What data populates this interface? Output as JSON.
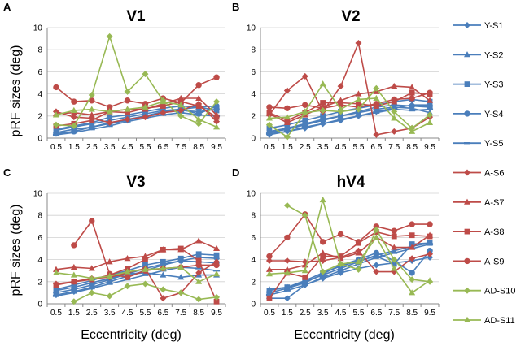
{
  "figure": {
    "ylabel": "pRF sizes (deg)",
    "xlabel": "Eccentricity (deg)"
  },
  "colors": {
    "Y": "#4A7EBB",
    "A": "#BE4B48",
    "AD": "#98B954"
  },
  "chart_data": [
    {
      "type": "line",
      "panel": "A",
      "title": "V1",
      "xlabel": "Eccentricity (deg)",
      "ylabel": "pRF sizes (deg)",
      "categories": [
        "0.5",
        "1.5",
        "2.5",
        "3.5",
        "4.5",
        "5.5",
        "6.5",
        "7.5",
        "8.5",
        "9.5"
      ],
      "ylim": [
        0,
        10
      ],
      "yticks": [
        0,
        2,
        4,
        6,
        8,
        10
      ],
      "series": [
        {
          "name": "Y-S1",
          "group": "Y",
          "marker": "diamond",
          "values": [
            0.5,
            0.8,
            1.0,
            1.3,
            1.6,
            2.0,
            2.3,
            2.5,
            2.4,
            2.6
          ]
        },
        {
          "name": "Y-S2",
          "group": "Y",
          "marker": "triangle",
          "values": [
            0.7,
            1.0,
            1.3,
            1.6,
            1.9,
            2.2,
            2.5,
            2.6,
            2.8,
            2.9
          ]
        },
        {
          "name": "Y-S3",
          "group": "Y",
          "marker": "square",
          "values": [
            0.8,
            1.1,
            1.4,
            1.9,
            2.1,
            2.4,
            2.7,
            2.9,
            2.8,
            2.5
          ]
        },
        {
          "name": "Y-S4",
          "group": "Y",
          "marker": "circle",
          "values": [
            0.4,
            0.6,
            1.0,
            1.4,
            1.7,
            2.0,
            2.4,
            2.6,
            2.2,
            2.9
          ]
        },
        {
          "name": "Y-S5",
          "group": "Y",
          "marker": "dash",
          "values": [
            0.3,
            0.5,
            0.8,
            1.1,
            1.5,
            1.8,
            2.1,
            2.3,
            2.1,
            2.0
          ]
        },
        {
          "name": "A-S6",
          "group": "A",
          "marker": "diamond",
          "values": [
            2.4,
            1.9,
            1.8,
            1.4,
            1.7,
            1.9,
            2.3,
            2.5,
            3.1,
            1.5
          ]
        },
        {
          "name": "A-S7",
          "group": "A",
          "marker": "triangle",
          "values": [
            2.2,
            2.3,
            2.1,
            2.4,
            2.6,
            2.6,
            3.1,
            3.6,
            3.6,
            2.1
          ]
        },
        {
          "name": "A-S8",
          "group": "A",
          "marker": "square",
          "values": [
            1.1,
            1.3,
            1.6,
            2.4,
            2.3,
            2.7,
            2.9,
            3.3,
            2.9,
            1.9
          ]
        },
        {
          "name": "A-S9",
          "group": "A",
          "marker": "circle",
          "values": [
            4.6,
            3.3,
            3.4,
            2.8,
            3.4,
            3.1,
            3.6,
            3.2,
            4.8,
            5.5
          ]
        },
        {
          "name": "AD-S10",
          "group": "AD",
          "marker": "diamond",
          "values": [
            1.2,
            1.1,
            3.9,
            9.2,
            4.2,
            5.8,
            3.4,
            2.0,
            1.3,
            3.3
          ]
        },
        {
          "name": "AD-S11",
          "group": "AD",
          "marker": "triangle",
          "values": [
            2.1,
            2.5,
            2.6,
            2.4,
            2.6,
            2.8,
            3.3,
            3.0,
            1.7,
            1.0
          ]
        }
      ]
    },
    {
      "type": "line",
      "panel": "B",
      "title": "V2",
      "xlabel": "Eccentricity (deg)",
      "ylabel": "pRF sizes (deg)",
      "categories": [
        "0.5",
        "1.5",
        "2.5",
        "3.5",
        "4.5",
        "5.5",
        "6.5",
        "7.5",
        "8.5",
        "9.5"
      ],
      "ylim": [
        0,
        10
      ],
      "yticks": [
        0,
        2,
        4,
        6,
        8,
        10
      ],
      "series": [
        {
          "name": "Y-S1",
          "group": "Y",
          "marker": "diamond",
          "values": [
            0.3,
            0.6,
            0.9,
            1.3,
            1.6,
            2.0,
            2.4,
            2.7,
            3.0,
            3.0
          ]
        },
        {
          "name": "Y-S2",
          "group": "Y",
          "marker": "triangle",
          "values": [
            0.6,
            0.9,
            1.3,
            1.7,
            2.0,
            2.3,
            2.6,
            2.8,
            2.7,
            2.3
          ]
        },
        {
          "name": "Y-S3",
          "group": "Y",
          "marker": "square",
          "values": [
            0.9,
            1.2,
            1.6,
            2.0,
            2.4,
            2.7,
            3.0,
            3.3,
            3.5,
            3.3
          ]
        },
        {
          "name": "Y-S4",
          "group": "Y",
          "marker": "circle",
          "values": [
            0.5,
            0.8,
            1.2,
            1.6,
            2.0,
            2.4,
            2.8,
            3.0,
            2.9,
            2.8
          ]
        },
        {
          "name": "Y-S5",
          "group": "Y",
          "marker": "dash",
          "values": [
            0.4,
            0.6,
            1.0,
            1.3,
            1.7,
            2.0,
            2.3,
            2.6,
            2.5,
            2.6
          ]
        },
        {
          "name": "A-S6",
          "group": "A",
          "marker": "diamond",
          "values": [
            2.1,
            4.3,
            5.6,
            2.4,
            4.7,
            8.6,
            0.3,
            0.6,
            0.9,
            1.9
          ]
        },
        {
          "name": "A-S7",
          "group": "A",
          "marker": "triangle",
          "values": [
            2.2,
            1.4,
            2.1,
            2.8,
            3.4,
            4.0,
            4.2,
            4.7,
            4.6,
            3.4
          ]
        },
        {
          "name": "A-S8",
          "group": "A",
          "marker": "square",
          "values": [
            2.3,
            1.6,
            2.3,
            3.2,
            3.2,
            3.1,
            2.9,
            3.3,
            4.1,
            4.0
          ]
        },
        {
          "name": "A-S9",
          "group": "A",
          "marker": "circle",
          "values": [
            2.8,
            2.7,
            3.0,
            2.7,
            3.0,
            2.8,
            3.1,
            3.5,
            3.6,
            4.1
          ]
        },
        {
          "name": "AD-S10",
          "group": "AD",
          "marker": "diamond",
          "values": [
            1.2,
            0.1,
            2.3,
            2.5,
            2.4,
            2.6,
            4.5,
            2.4,
            0.9,
            2.1
          ]
        },
        {
          "name": "AD-S11",
          "group": "AD",
          "marker": "triangle",
          "values": [
            1.8,
            1.9,
            2.4,
            4.9,
            2.6,
            3.5,
            3.6,
            1.8,
            0.6,
            1.4
          ]
        }
      ]
    },
    {
      "type": "line",
      "panel": "C",
      "title": "V3",
      "xlabel": "Eccentricity (deg)",
      "ylabel": "pRF sizes (deg)",
      "categories": [
        "0.5",
        "1.5",
        "2.5",
        "3.5",
        "4.5",
        "5.5",
        "6.5",
        "7.5",
        "8.5",
        "9.5"
      ],
      "ylim": [
        0,
        10
      ],
      "yticks": [
        0,
        2,
        4,
        6,
        8,
        10
      ],
      "series": [
        {
          "name": "Y-S1",
          "group": "Y",
          "marker": "diamond",
          "values": [
            0.8,
            1.1,
            1.5,
            2.0,
            2.5,
            3.0,
            3.5,
            3.9,
            4.2,
            4.1
          ]
        },
        {
          "name": "Y-S2",
          "group": "Y",
          "marker": "triangle",
          "values": [
            1.2,
            1.5,
            1.9,
            2.3,
            2.7,
            2.8,
            2.6,
            2.4,
            2.6,
            2.6
          ]
        },
        {
          "name": "Y-S3",
          "group": "Y",
          "marker": "square",
          "values": [
            1.3,
            1.7,
            2.1,
            2.6,
            3.0,
            3.5,
            3.8,
            4.1,
            4.5,
            4.4
          ]
        },
        {
          "name": "Y-S4",
          "group": "Y",
          "marker": "circle",
          "values": [
            1.0,
            1.3,
            1.7,
            2.2,
            2.7,
            3.2,
            3.6,
            3.9,
            3.8,
            3.7
          ]
        },
        {
          "name": "Y-S5",
          "group": "Y",
          "marker": "dash",
          "values": [
            0.7,
            1.0,
            1.4,
            1.8,
            2.2,
            2.6,
            3.0,
            3.3,
            3.2,
            3.0
          ]
        },
        {
          "name": "A-S6",
          "group": "A",
          "marker": "diamond",
          "values": [
            1.8,
            2.0,
            2.3,
            2.4,
            2.8,
            3.2,
            0.5,
            1.0,
            2.8,
            3.8
          ]
        },
        {
          "name": "A-S7",
          "group": "A",
          "marker": "triangle",
          "values": [
            3.1,
            3.3,
            3.2,
            3.8,
            4.1,
            4.3,
            4.9,
            4.9,
            5.7,
            5.0
          ]
        },
        {
          "name": "A-S8",
          "group": "A",
          "marker": "square",
          "values": [
            1.7,
            2.0,
            2.2,
            2.6,
            3.2,
            4.0,
            4.9,
            5.0,
            3.9,
            0.2
          ]
        },
        {
          "name": "A-S9",
          "group": "A",
          "marker": "circle",
          "values": null,
          "points": [
            [
              1,
              5.3
            ],
            [
              2,
              7.5
            ],
            [
              3,
              2.7
            ],
            [
              4,
              2.4
            ],
            [
              5,
              3.0
            ],
            [
              6,
              3.2
            ],
            [
              7,
              3.3
            ],
            [
              8,
              3.5
            ],
            [
              9,
              3.5
            ]
          ]
        },
        {
          "name": "AD-S10",
          "group": "AD",
          "marker": "diamond",
          "values": null,
          "points": [
            [
              1,
              0.2
            ],
            [
              2,
              1.0
            ],
            [
              3,
              0.7
            ],
            [
              4,
              1.6
            ],
            [
              5,
              1.8
            ],
            [
              6,
              1.3
            ],
            [
              7,
              1.0
            ],
            [
              8,
              0.4
            ],
            [
              9,
              0.6
            ]
          ]
        },
        {
          "name": "AD-S11",
          "group": "AD",
          "marker": "triangle",
          "values": [
            2.8,
            2.6,
            2.3,
            2.5,
            2.9,
            3.1,
            3.2,
            3.3,
            2.0,
            2.7
          ]
        }
      ]
    },
    {
      "type": "line",
      "panel": "D",
      "title": "hV4",
      "xlabel": "Eccentricity (deg)",
      "ylabel": "pRF sizes (deg)",
      "categories": [
        "0.5",
        "1.5",
        "2.5",
        "3.5",
        "4.5",
        "5.5",
        "6.5",
        "7.5",
        "8.5",
        "9.5"
      ],
      "ylim": [
        0,
        10
      ],
      "yticks": [
        0,
        2,
        4,
        6,
        8,
        10
      ],
      "series": [
        {
          "name": "Y-S1",
          "group": "Y",
          "marker": "diamond",
          "values": [
            0.5,
            0.5,
            1.7,
            2.3,
            2.8,
            3.2,
            3.5,
            3.7,
            3.9,
            4.2
          ]
        },
        {
          "name": "Y-S2",
          "group": "Y",
          "marker": "triangle",
          "values": [
            1.3,
            1.5,
            2.0,
            2.6,
            3.2,
            3.8,
            4.4,
            4.8,
            5.2,
            5.5
          ]
        },
        {
          "name": "Y-S3",
          "group": "Y",
          "marker": "square",
          "values": [
            1.2,
            1.5,
            2.1,
            2.8,
            3.4,
            3.9,
            4.3,
            3.6,
            5.4,
            5.5
          ]
        },
        {
          "name": "Y-S4",
          "group": "Y",
          "marker": "circle",
          "values": [
            1.0,
            1.4,
            1.9,
            2.7,
            3.5,
            4.0,
            4.6,
            3.9,
            2.8,
            4.8
          ]
        },
        {
          "name": "Y-S5",
          "group": "Y",
          "marker": "dash",
          "values": [
            0.8,
            1.2,
            1.7,
            2.4,
            3.0,
            3.6,
            4.2,
            4.6,
            5.0,
            5.4
          ]
        },
        {
          "name": "A-S6",
          "group": "A",
          "marker": "diamond",
          "values": [
            3.9,
            3.9,
            3.8,
            3.9,
            4.2,
            4.8,
            2.9,
            2.9,
            4.1,
            4.5
          ]
        },
        {
          "name": "A-S7",
          "group": "A",
          "marker": "triangle",
          "values": [
            3.1,
            3.1,
            3.5,
            4.6,
            4.1,
            4.6,
            6.0,
            5.1,
            5.1,
            6.2
          ]
        },
        {
          "name": "A-S8",
          "group": "A",
          "marker": "square",
          "values": [
            0.5,
            2.8,
            2.4,
            4.3,
            4.3,
            5.5,
            6.5,
            6.1,
            6.2,
            6.1
          ]
        },
        {
          "name": "A-S9",
          "group": "A",
          "marker": "circle",
          "values": [
            4.3,
            6.0,
            8.1,
            5.6,
            6.3,
            5.6,
            7.0,
            6.6,
            7.2,
            7.2
          ]
        },
        {
          "name": "AD-S10",
          "group": "AD",
          "marker": "diamond",
          "values": null,
          "points": [
            [
              1,
              8.9
            ],
            [
              2,
              8.0
            ],
            [
              3,
              2.9
            ],
            [
              4,
              3.6
            ],
            [
              5,
              3.1
            ],
            [
              6,
              6.7
            ],
            [
              7,
              4.0
            ],
            [
              8,
              2.2
            ],
            [
              9,
              2.0
            ]
          ]
        },
        {
          "name": "AD-S11",
          "group": "AD",
          "marker": "triangle",
          "values": [
            2.7,
            2.8,
            3.0,
            9.4,
            3.6,
            3.8,
            6.0,
            3.2,
            1.0,
            2.1
          ]
        }
      ]
    }
  ]
}
